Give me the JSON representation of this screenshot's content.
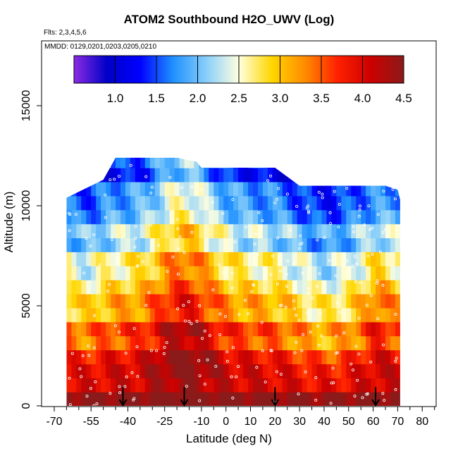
{
  "title": "ATOM2 Southbound H2O_UWV (Log)",
  "flights_label": "Flts: 2,3,4,5,6",
  "mmdd_label": "MMDD: 0129,0201,0203,0205,0210",
  "xlabel": "Latitude (deg N)",
  "ylabel": "Altitude (m)",
  "chart_data": {
    "type": "heatmap",
    "title": "ATOM2 Southbound H2O_UWV (Log)",
    "xlabel": "Latitude (deg N)",
    "ylabel": "Altitude (m)",
    "xlim": [
      -70,
      85
    ],
    "ylim": [
      0,
      17500
    ],
    "x_ticks": [
      -70,
      -55,
      -40,
      -25,
      -10,
      0,
      10,
      20,
      30,
      40,
      50,
      60,
      70,
      80
    ],
    "x_tick_labels": [
      "-70",
      "-55",
      "-40",
      "-25",
      "-10",
      "0",
      "10",
      "20",
      "30",
      "40",
      "50",
      "60",
      "70",
      "80"
    ],
    "x_minor_ticks": [
      -65,
      -60,
      -50,
      -45,
      -35,
      -30,
      -20,
      -15,
      -5,
      5,
      15,
      25,
      35,
      45,
      55,
      65,
      75,
      85
    ],
    "y_ticks": [
      0,
      5000,
      10000,
      15000
    ],
    "y_tick_labels": [
      "0",
      "5000",
      "10000",
      "15000"
    ],
    "colorbar": {
      "range": [
        0.5,
        4.5
      ],
      "ticks": [
        1.0,
        1.5,
        2.0,
        2.5,
        3.0,
        3.5,
        4.0,
        4.5
      ],
      "tick_labels": [
        "1.0",
        "1.5",
        "2.0",
        "2.5",
        "3.0",
        "3.5",
        "4.0",
        "4.5"
      ],
      "colors": [
        "#8b2be2",
        "#0000c8",
        "#0000ff",
        "#1e90ff",
        "#87cefa",
        "#ffffe0",
        "#ffd700",
        "#ff8c00",
        "#ff2000",
        "#cc0000",
        "#8b1a1a"
      ]
    },
    "boundary": {
      "lat": [
        -65,
        -60,
        -50,
        -45,
        -40,
        -30,
        -20,
        -12,
        -10,
        0,
        10,
        20,
        30,
        40,
        50,
        60,
        65,
        70,
        71
      ],
      "top_m": [
        10400,
        10700,
        11300,
        12400,
        12400,
        12400,
        12400,
        12200,
        11900,
        11900,
        11900,
        11900,
        11000,
        11000,
        11000,
        11000,
        11000,
        10800,
        10300
      ]
    },
    "profile_arrows_lat": [
      -42,
      -17,
      20,
      61
    ],
    "profile_arrow_alt_m": [
      0,
      800
    ],
    "grid": false,
    "legend": "colorbar top"
  }
}
